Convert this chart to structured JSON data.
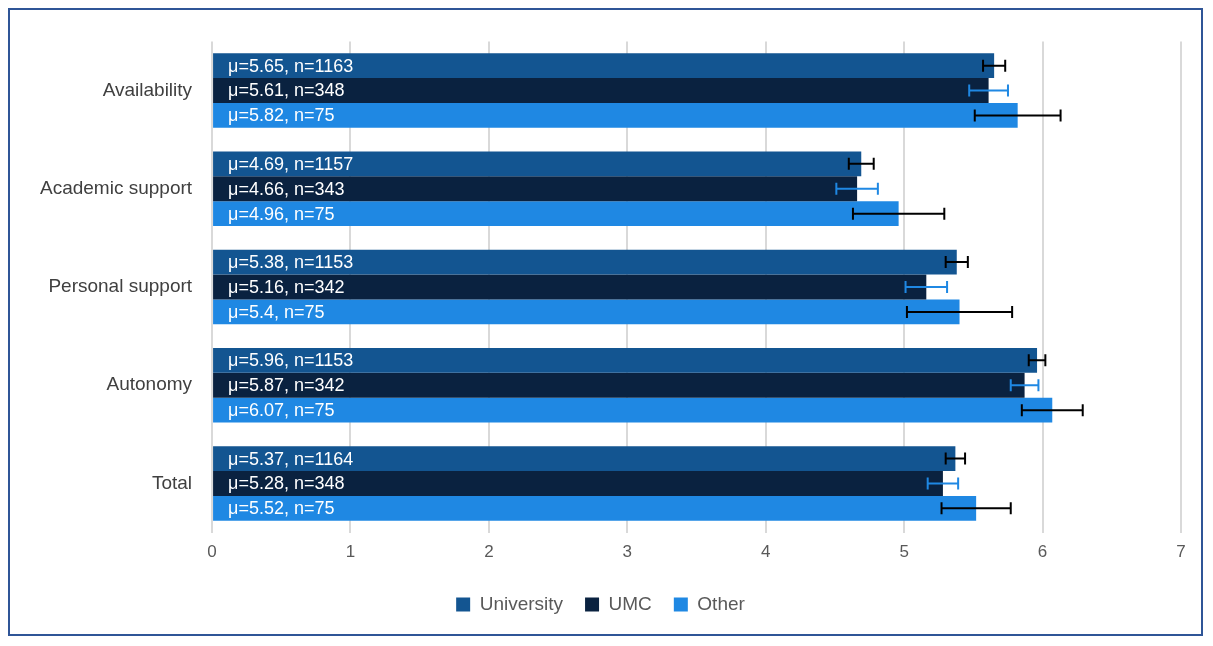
{
  "chart_data": {
    "type": "bar",
    "orientation": "horizontal",
    "categories": [
      "Availability",
      "Academic support",
      "Personal support",
      "Autonomy",
      "Total"
    ],
    "series": [
      {
        "name": "University",
        "color": "#135591",
        "values": [
          5.65,
          4.69,
          5.38,
          5.96,
          5.37
        ],
        "errors": [
          0.08,
          0.09,
          0.08,
          0.06,
          0.07
        ],
        "value_labels": [
          "μ=5.65, n=1163",
          "μ=4.69, n=1157",
          "μ=5.38, n=1153",
          "μ=5.96, n=1153",
          "μ=5.37, n=1164"
        ]
      },
      {
        "name": "UMC",
        "color": "#0a2240",
        "values": [
          5.61,
          4.66,
          5.16,
          5.87,
          5.28
        ],
        "errors": [
          0.14,
          0.15,
          0.15,
          0.1,
          0.11
        ],
        "value_labels": [
          "μ=5.61, n=348",
          "μ=4.66, n=343",
          "μ=5.16, n=342",
          "μ=5.87, n=342",
          "μ=5.28, n=348"
        ]
      },
      {
        "name": "Other",
        "color": "#1f88e3",
        "values": [
          5.82,
          4.96,
          5.4,
          6.07,
          5.52
        ],
        "errors": [
          0.31,
          0.33,
          0.38,
          0.22,
          0.25
        ],
        "value_labels": [
          "μ=5.82, n=75",
          "μ=4.96, n=75",
          "μ=5.4, n=75",
          "μ=6.07, n=75",
          "μ=5.52, n=75"
        ]
      }
    ],
    "xlim": [
      0,
      7
    ],
    "xticks": [
      0,
      1,
      2,
      3,
      4,
      5,
      6,
      7
    ],
    "grid": "x",
    "legend": "bottom"
  }
}
